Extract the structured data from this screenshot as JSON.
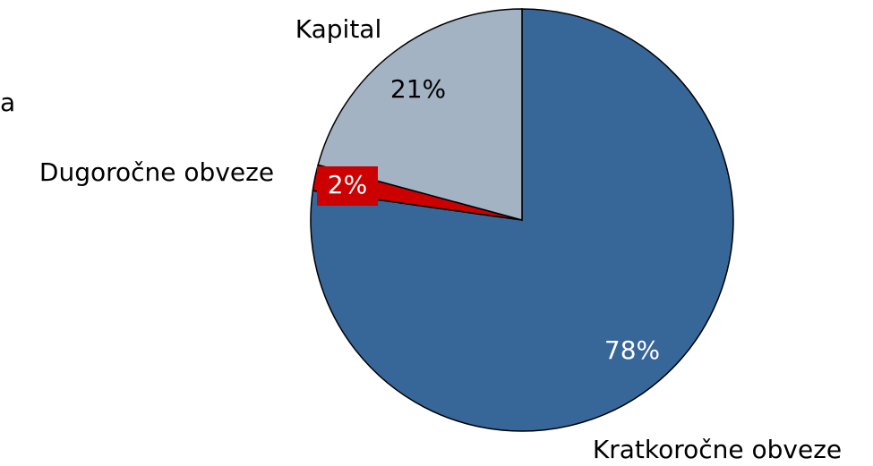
{
  "chart_data": {
    "type": "pie",
    "annotations": [
      "a"
    ],
    "categories": [
      "Kratkoročne obveze",
      "Dugoročne obveze",
      "Kapital"
    ],
    "values": [
      78,
      2,
      21
    ],
    "value_labels": [
      "78%",
      "2%",
      "21%"
    ],
    "colors": [
      "#376699",
      "#cc0000",
      "#a3b3c4"
    ]
  }
}
